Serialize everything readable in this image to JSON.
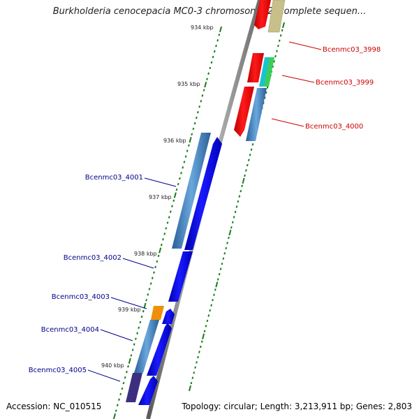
{
  "title": "Burkholderia cenocepacia MC0-3 chromosome 2, complete sequen...",
  "footer": {
    "accession": "Accession: NC_010515",
    "topology": "Topology: circular; Length: 3,213,911 bp; Genes: 2,803"
  },
  "scale": {
    "ticks": [
      "934 kbp",
      "935 kbp",
      "936 kbp",
      "937 kbp",
      "938 kbp",
      "939 kbp",
      "940 kbp"
    ]
  },
  "genes_right": [
    {
      "name": "Bcenmc03_3998"
    },
    {
      "name": "Bcenmc03_3999"
    },
    {
      "name": "Bcenmc03_4000"
    }
  ],
  "genes_left": [
    {
      "name": "Bcenmc03_4001"
    },
    {
      "name": "Bcenmc03_4002"
    },
    {
      "name": "Bcenmc03_4003"
    },
    {
      "name": "Bcenmc03_4004"
    },
    {
      "name": "Bcenmc03_4005"
    }
  ],
  "colors": {
    "backbone": "#8a8a8a",
    "forward_gene": "#0000ee",
    "reverse_gene": "#ee0000",
    "cog_blue": "#4a86c0",
    "cog_orange": "#f0900a",
    "cog_purple": "#3c2f80",
    "cog_cyan": "#19c4d0",
    "cog_green": "#3acf5a",
    "cog_khaki": "#c8c08a",
    "tick_green": "#1a7a1a",
    "label_blue": "#00008b",
    "label_red": "#cc0000"
  }
}
